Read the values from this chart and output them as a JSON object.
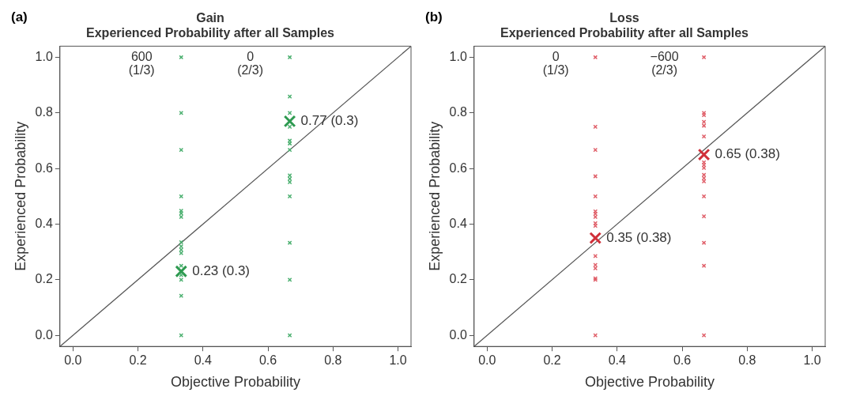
{
  "chart_data": [
    {
      "type": "scatter",
      "title": "Gain",
      "subtitle": "Experienced Probability after all Samples",
      "xlabel": "Objective Probability",
      "ylabel": "Experienced Probability",
      "xlim": [
        -0.04,
        1.04
      ],
      "ylim": [
        -0.04,
        1.04
      ],
      "xticks": [
        {
          "value": 0,
          "label": "0.0"
        },
        {
          "value": 0.2,
          "label": "0.2"
        },
        {
          "value": 0.4,
          "label": "0.4"
        },
        {
          "value": 0.6,
          "label": "0.6"
        },
        {
          "value": 0.8,
          "label": "0.8"
        },
        {
          "value": 1,
          "label": "1.0"
        }
      ],
      "yticks": [
        {
          "value": 0,
          "label": "0.0"
        },
        {
          "value": 0.2,
          "label": "0.2"
        },
        {
          "value": 0.4,
          "label": "0.4"
        },
        {
          "value": 0.6,
          "label": "0.6"
        },
        {
          "value": 0.8,
          "label": "0.8"
        },
        {
          "value": 1,
          "label": "1.0"
        }
      ],
      "grid": false,
      "legend": false,
      "annotations": [
        "(a)",
        "600\n(1/3)",
        "0\n(2/3)"
      ],
      "series": [
        {
          "type": "scatter",
          "marker": "cross",
          "color": "#4cb070",
          "x": [
            0.333,
            0.333,
            0.333,
            0.333,
            0.333,
            0.333,
            0.333,
            0.333,
            0.333,
            0.333,
            0.333,
            0.333,
            0.333,
            0.333,
            0.333,
            0.333
          ],
          "values": [
            1,
            0.8,
            0.667,
            0.5,
            0.448,
            0.439,
            0.426,
            0.335,
            0.32,
            0.308,
            0.296,
            0.25,
            0.217,
            0.2,
            0.142,
            0
          ]
        },
        {
          "type": "scatter",
          "marker": "cross",
          "color": "#4cb070",
          "x": [
            0.667,
            0.667,
            0.667,
            0.667,
            0.667,
            0.667,
            0.667,
            0.667,
            0.667,
            0.667,
            0.667,
            0.667,
            0.667,
            0.667
          ],
          "values": [
            1,
            0.859,
            0.8,
            0.75,
            0.7,
            0.69,
            0.667,
            0.575,
            0.563,
            0.551,
            0.5,
            0.333,
            0.2,
            0
          ]
        },
        {
          "type": "scatter",
          "marker": "cross",
          "color": "#2e9a50",
          "x": [
            0.333,
            0.667
          ],
          "values": [
            0.23,
            0.77
          ],
          "value_labels": [
            "0.23 (0.3)",
            "0.77 (0.3)"
          ]
        },
        {
          "type": "line",
          "color": "#555555",
          "x": [
            -0.04,
            1.04
          ],
          "values": [
            -0.04,
            1.04
          ]
        }
      ]
    },
    {
      "type": "scatter",
      "title": "Loss",
      "subtitle": "Experienced Probability after all Samples",
      "xlabel": "Objective Probability",
      "ylabel": "Experienced Probability",
      "xlim": [
        -0.04,
        1.04
      ],
      "ylim": [
        -0.04,
        1.04
      ],
      "xticks": [
        {
          "value": 0,
          "label": "0.0"
        },
        {
          "value": 0.2,
          "label": "0.2"
        },
        {
          "value": 0.4,
          "label": "0.4"
        },
        {
          "value": 0.6,
          "label": "0.6"
        },
        {
          "value": 0.8,
          "label": "0.8"
        },
        {
          "value": 1,
          "label": "1.0"
        }
      ],
      "yticks": [
        {
          "value": 0,
          "label": "0.0"
        },
        {
          "value": 0.2,
          "label": "0.2"
        },
        {
          "value": 0.4,
          "label": "0.4"
        },
        {
          "value": 0.6,
          "label": "0.6"
        },
        {
          "value": 0.8,
          "label": "0.8"
        },
        {
          "value": 1,
          "label": "1.0"
        }
      ],
      "grid": false,
      "legend": false,
      "annotations": [
        "(b)",
        "0\n(1/3)",
        "−600\n(2/3)"
      ],
      "series": [
        {
          "type": "scatter",
          "marker": "cross",
          "color": "#e0606a",
          "x": [
            0.333,
            0.333,
            0.333,
            0.333,
            0.333,
            0.333,
            0.333,
            0.333,
            0.333,
            0.333,
            0.333,
            0.333,
            0.333,
            0.333,
            0.333,
            0.333
          ],
          "values": [
            1,
            0.75,
            0.667,
            0.572,
            0.5,
            0.446,
            0.437,
            0.426,
            0.403,
            0.394,
            0.285,
            0.253,
            0.241,
            0.205,
            0.2,
            0
          ]
        },
        {
          "type": "scatter",
          "marker": "cross",
          "color": "#e0606a",
          "x": [
            0.667,
            0.667,
            0.667,
            0.667,
            0.667,
            0.667,
            0.667,
            0.667,
            0.667,
            0.667,
            0.667,
            0.667,
            0.667,
            0.667,
            0.667,
            0.667,
            0.667
          ],
          "values": [
            1,
            0.8,
            0.792,
            0.768,
            0.754,
            0.715,
            0.622,
            0.613,
            0.602,
            0.577,
            0.565,
            0.554,
            0.5,
            0.428,
            0.333,
            0.25,
            0
          ]
        },
        {
          "type": "scatter",
          "marker": "cross",
          "color": "#d0303a",
          "x": [
            0.333,
            0.667
          ],
          "values": [
            0.35,
            0.65
          ],
          "value_labels": [
            "0.35 (0.38)",
            "0.65 (0.38)"
          ]
        },
        {
          "type": "line",
          "color": "#555555",
          "x": [
            -0.04,
            1.04
          ],
          "values": [
            -0.04,
            1.04
          ]
        }
      ]
    }
  ]
}
